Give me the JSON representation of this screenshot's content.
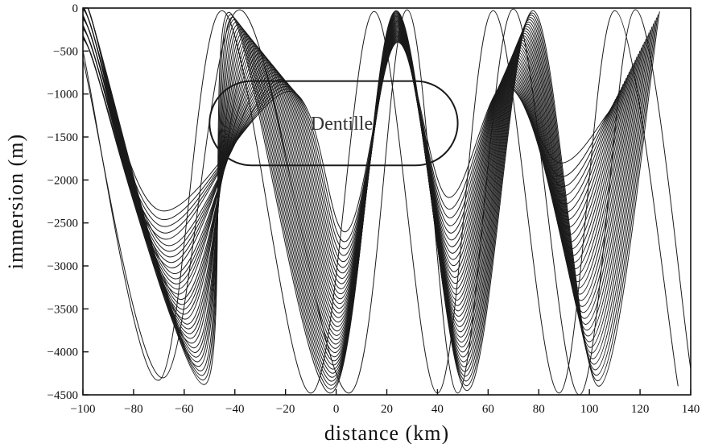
{
  "chart_data": {
    "type": "line",
    "title": "",
    "xlabel": "distance (km)",
    "ylabel": "immersion (m)",
    "xlim": [
      -100,
      140
    ],
    "ylim": [
      -4500,
      0
    ],
    "xticks": [
      -100,
      -80,
      -60,
      -40,
      -20,
      0,
      20,
      40,
      60,
      80,
      100,
      120,
      140
    ],
    "yticks": [
      0,
      -500,
      -1000,
      -1500,
      -2000,
      -2500,
      -3000,
      -3500,
      -4000,
      -4500
    ],
    "xtick_labels": [
      "−100",
      "−80",
      "−60",
      "−40",
      "−20",
      "0",
      "20",
      "40",
      "60",
      "80",
      "100",
      "120",
      "140"
    ],
    "ytick_labels": [
      "0",
      "−500",
      "−1000",
      "−1500",
      "−2000",
      "−2500",
      "−3000",
      "−3500",
      "−4000",
      "−4500"
    ],
    "grid": false,
    "legend": "none",
    "annotation": {
      "label": "Dentille",
      "x_range": [
        -50,
        48
      ],
      "y_range": [
        -850,
        -1830
      ]
    },
    "ray_fan": {
      "description": "acoustic ray family launched from the source at x=-100 km, depth about 300-800 m",
      "source": {
        "x": -100,
        "y": -550
      },
      "count": 34,
      "first_trough": {
        "x_start": -70,
        "x_end": -52,
        "y_start": -2350,
        "y_end": -4380
      },
      "first_crest": {
        "x_start": -45,
        "x_end": -18,
        "y_start": -50,
        "y_end": -1200
      },
      "second_trough": {
        "x_start": -10,
        "x_end": 22,
        "y_start": -2700,
        "y_end": -4480
      },
      "steep_rays": [
        {
          "x": [
            -100,
            -70,
            -45,
            -10,
            15,
            40,
            62,
            88,
            110,
            135
          ],
          "y": [
            -500,
            -4330,
            -30,
            -4480,
            -40,
            -4480,
            -30,
            -4480,
            -30,
            -4400
          ]
        },
        {
          "x": [
            -100,
            -68,
            -38,
            5,
            28,
            48,
            70,
            96,
            118,
            140
          ],
          "y": [
            -600,
            -4300,
            -20,
            -4480,
            -20,
            -4480,
            -10,
            -4500,
            -20,
            -4200
          ]
        }
      ]
    }
  }
}
